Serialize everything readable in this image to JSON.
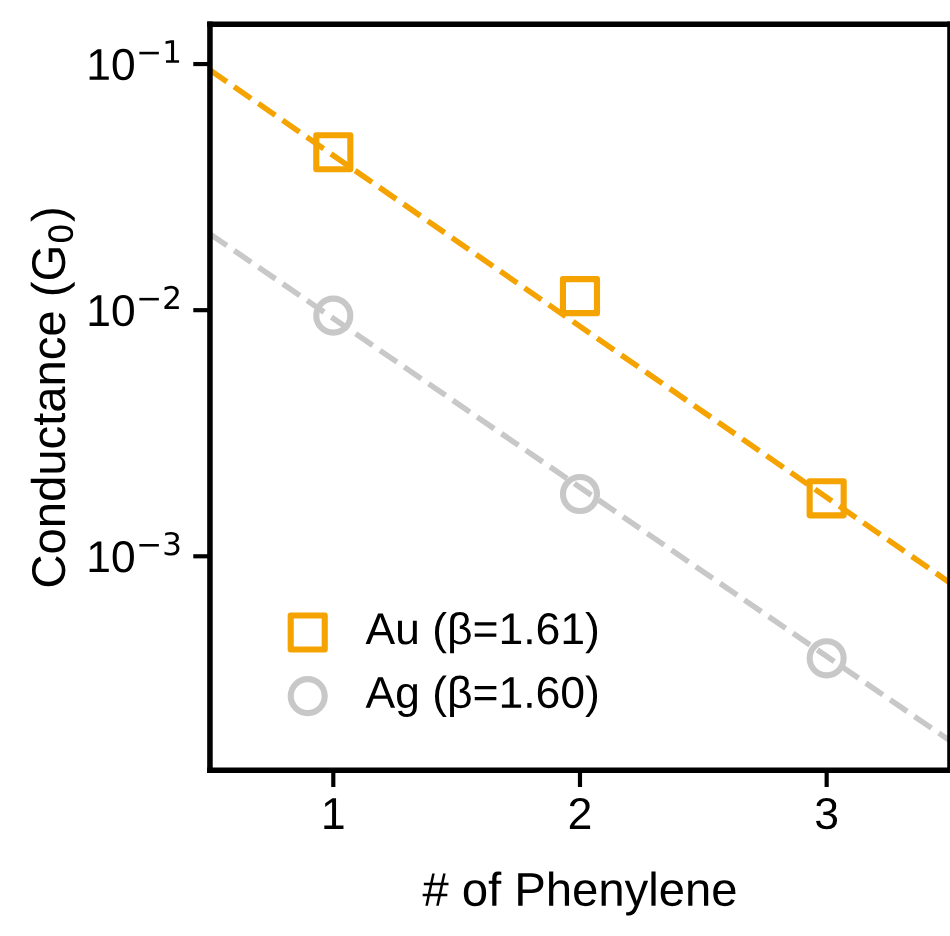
{
  "chart_data": {
    "type": "scatter",
    "xlabel": "# of Phenylene",
    "ylabel": "Conductance (G$_{0}$)",
    "log": "y",
    "xlim": [
      0.5,
      3.5
    ],
    "ylim": [
      0.000135,
      0.145
    ],
    "xticks": [
      1,
      2,
      3
    ],
    "yticks": [
      {
        "value": 0.1,
        "label": "10$^{−1}$"
      },
      {
        "value": 0.01,
        "label": "10$^{−2}$"
      },
      {
        "value": 0.001,
        "label": "10$^{−3}$"
      }
    ],
    "grid": false,
    "legend": "bottom left",
    "marker": "square",
    "series": [
      {
        "name": "Au (β=1.61)",
        "color": "#f5a300",
        "x": [
          1,
          2,
          3
        ],
        "values": [
          0.0438,
          0.0114,
          0.00172
        ]
      },
      {
        "name": "Ag (β=1.60)",
        "color": "#c8c8c8",
        "marker": "circle",
        "x": [
          1,
          2,
          3
        ],
        "values": [
          0.0095,
          0.00179,
          0.000385
        ]
      },
      {
        "color": "#f5a300",
        "type": "line",
        "line_style": "dashed",
        "marker": "none",
        "x": [
          0.5,
          3.5
        ],
        "values": [
          0.0946,
          0.00078
        ]
      },
      {
        "color": "#c8c8c8",
        "type": "line",
        "line_style": "dashed",
        "marker": "none",
        "x": [
          0.5,
          3.5
        ],
        "values": [
          0.0204,
          0.000178
        ]
      }
    ]
  }
}
